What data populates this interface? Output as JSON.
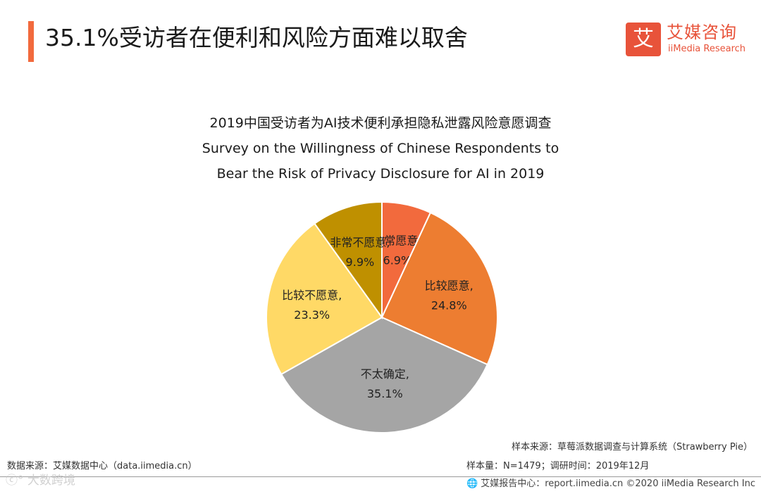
{
  "header": {
    "title": "35.1%受访者在便利和风险方面难以取舍"
  },
  "logo": {
    "mark": "艾",
    "name_cn": "艾媒咨询",
    "name_en": "iiMedia Research"
  },
  "chart_data": {
    "type": "pie",
    "title_cn": "2019中国受访者为AI技术便利承担隐私泄露风险意愿调查",
    "title_en_line1": "Survey on the Willingness of Chinese Respondents to",
    "title_en_line2": "Bear the Risk of Privacy Disclosure for AI  in 2019",
    "unit": "%",
    "slices": [
      {
        "label": "非常愿意,",
        "value": 6.9,
        "value_text": "6.9%",
        "color": "#f26a3d"
      },
      {
        "label": "比较愿意,",
        "value": 24.8,
        "value_text": "24.8%",
        "color": "#ed7d31"
      },
      {
        "label": "不太确定,",
        "value": 35.1,
        "value_text": "35.1%",
        "color": "#a5a5a5"
      },
      {
        "label": "比较不愿意,",
        "value": 23.3,
        "value_text": "23.3%",
        "color": "#ffd966"
      },
      {
        "label": "非常不愿意,",
        "value": 9.9,
        "value_text": "9.9%",
        "color": "#bf9000"
      }
    ]
  },
  "sources": {
    "sample_source": "样本来源：草莓派数据调查与计算系统（Strawberry  Pie）",
    "sample_size": "样本量：N=1479；调研时间：2019年12月",
    "data_source": "数据来源：艾媒数据中心（data.iimedia.cn）"
  },
  "footer": {
    "report": "艾媒报告中心：report.iimedia.cn  ©2020  iiMedia Research  Inc"
  },
  "watermark": {
    "text": "ⓒ° 大数跨境"
  }
}
